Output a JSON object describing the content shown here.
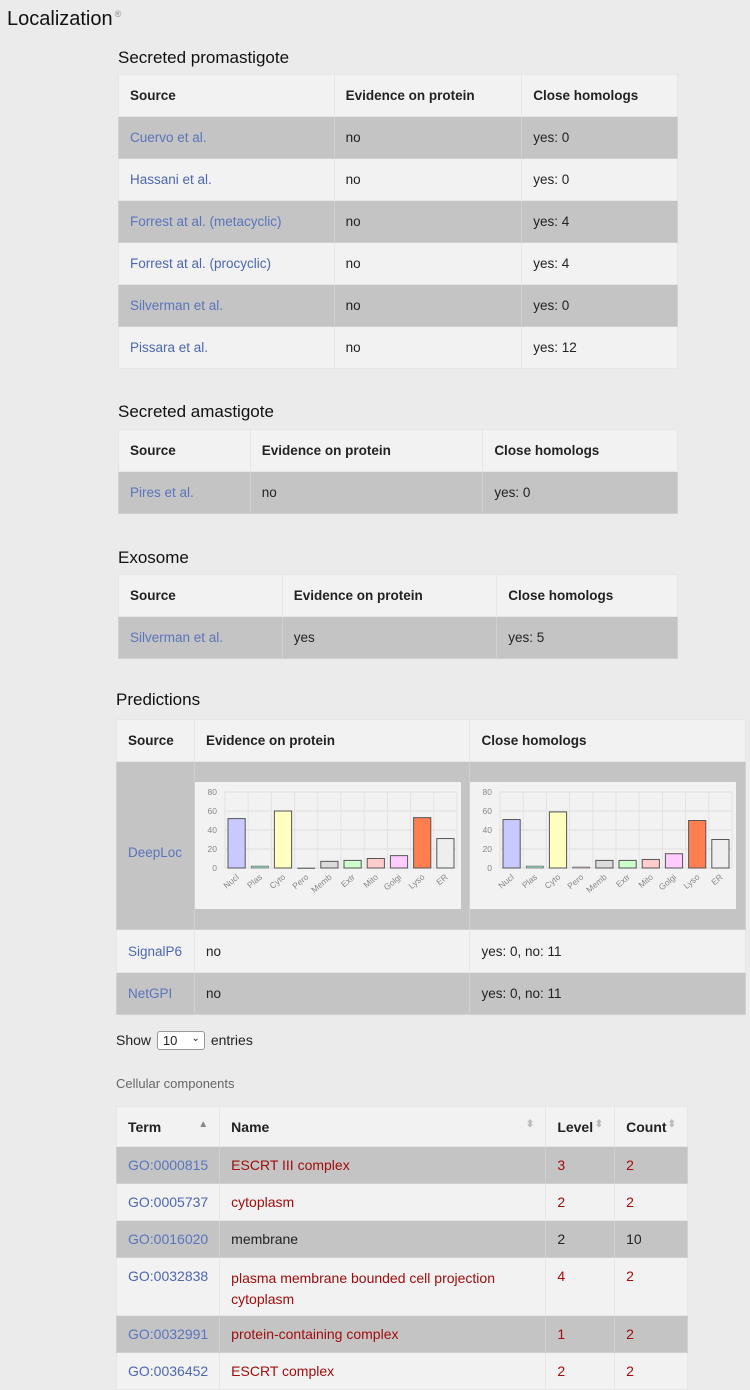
{
  "page_title": "Localization",
  "info_mark": "®",
  "sections": {
    "promastigote": {
      "title": "Secreted promastigote",
      "headers": [
        "Source",
        "Evidence on protein",
        "Close homologs"
      ],
      "rows": [
        {
          "source": "Cuervo et al.",
          "evidence": "no",
          "homologs": "yes: 0"
        },
        {
          "source": "Hassani et al.",
          "evidence": "no",
          "homologs": "yes: 0"
        },
        {
          "source": "Forrest at al. (metacyclic)",
          "evidence": "no",
          "homologs": "yes: 4"
        },
        {
          "source": "Forrest at al. (procyclic)",
          "evidence": "no",
          "homologs": "yes: 4"
        },
        {
          "source": "Silverman et al.",
          "evidence": "no",
          "homologs": "yes: 0"
        },
        {
          "source": "Pissara et al.",
          "evidence": "no",
          "homologs": "yes: 12"
        }
      ]
    },
    "amastigote": {
      "title": "Secreted amastigote",
      "headers": [
        "Source",
        "Evidence on protein",
        "Close homologs"
      ],
      "rows": [
        {
          "source": "Pires et al.",
          "evidence": "no",
          "homologs": "yes: 0"
        }
      ]
    },
    "exosome": {
      "title": "Exosome",
      "headers": [
        "Source",
        "Evidence on protein",
        "Close homologs"
      ],
      "rows": [
        {
          "source": "Silverman et al.",
          "evidence": "yes",
          "homologs": "yes: 5"
        }
      ]
    },
    "predictions": {
      "title": "Predictions",
      "headers": [
        "Source",
        "Evidence on protein",
        "Close homologs"
      ],
      "deeploc": "DeepLoc",
      "rows": [
        {
          "source": "SignalP6",
          "evidence": "no",
          "homologs": "yes: 0, no: 11"
        },
        {
          "source": "NetGPI",
          "evidence": "no",
          "homologs": "yes: 0, no: 11"
        }
      ]
    }
  },
  "chart_data": [
    {
      "type": "bar",
      "categories": [
        "Nucl",
        "Plas",
        "Cyto",
        "Pero",
        "Memb",
        "Extr",
        "Mito",
        "Golgi",
        "Lyso",
        "ER"
      ],
      "values": [
        52,
        2,
        60,
        0,
        7,
        8,
        10,
        13,
        53,
        31
      ],
      "colors": [
        "#c9c9ff",
        "#9be0cc",
        "#ffffc0",
        "#ffd6ff",
        "#dcdcdc",
        "#ccffcc",
        "#ffcccc",
        "#ffccff",
        "#ff7f50",
        "#eeeeee"
      ],
      "ylim": [
        0,
        80
      ],
      "yticks": [
        0,
        20,
        40,
        60,
        80
      ]
    },
    {
      "type": "bar",
      "categories": [
        "Nucl",
        "Plas",
        "Cyto",
        "Pero",
        "Memb",
        "Extr",
        "Mito",
        "Golgi",
        "Lyso",
        "ER"
      ],
      "values": [
        51,
        2,
        59,
        1,
        8,
        8,
        9,
        15,
        50,
        30
      ],
      "colors": [
        "#c9c9ff",
        "#9be0cc",
        "#ffffc0",
        "#ffd6ff",
        "#dcdcdc",
        "#ccffcc",
        "#ffcccc",
        "#ffccff",
        "#ff7f50",
        "#eeeeee"
      ],
      "ylim": [
        0,
        80
      ],
      "yticks": [
        0,
        20,
        40,
        60,
        80
      ]
    }
  ],
  "entries": {
    "show_label": "Show",
    "value": "10",
    "suffix": "entries"
  },
  "cellular": {
    "caption": "Cellular components",
    "headers": {
      "term": "Term",
      "name": "Name",
      "level": "Level",
      "count": "Count"
    },
    "rows": [
      {
        "term": "GO:0000815",
        "name": "ESCRT III complex",
        "level": "3",
        "count": "2",
        "red": true
      },
      {
        "term": "GO:0005737",
        "name": "cytoplasm",
        "level": "2",
        "count": "2",
        "red": true
      },
      {
        "term": "GO:0016020",
        "name": "membrane",
        "level": "2",
        "count": "10",
        "red": false
      },
      {
        "term": "GO:0032838",
        "name": "plasma membrane bounded cell projection cytoplasm",
        "level": "4",
        "count": "2",
        "red": true
      },
      {
        "term": "GO:0032991",
        "name": "protein-containing complex",
        "level": "1",
        "count": "2",
        "red": true
      },
      {
        "term": "GO:0036452",
        "name": "ESCRT complex",
        "level": "2",
        "count": "2",
        "red": true
      }
    ]
  }
}
